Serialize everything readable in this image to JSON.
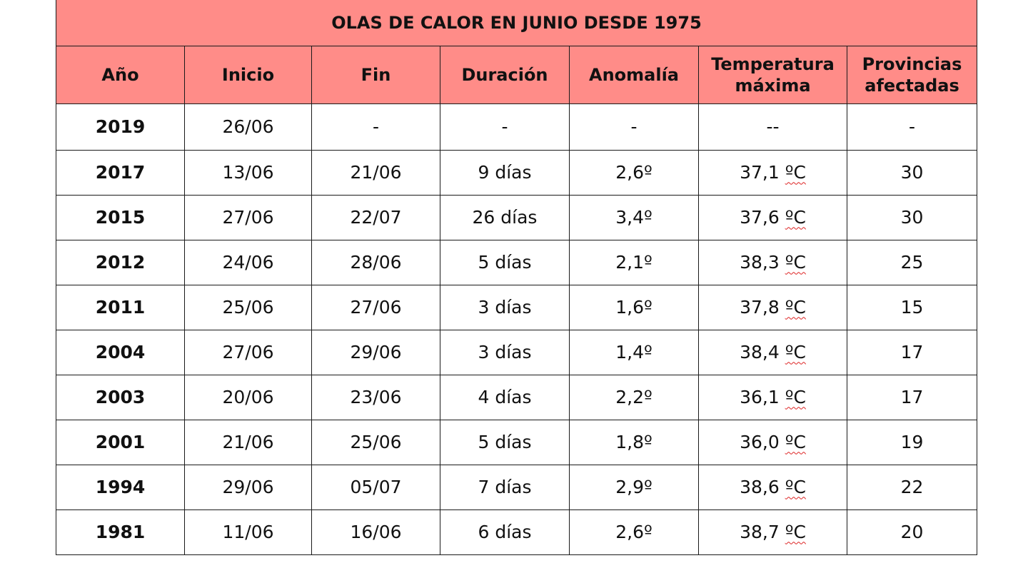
{
  "table": {
    "title": "OLAS DE CALOR EN JUNIO DESDE 1975",
    "headers": {
      "year": "Año",
      "start": "Inicio",
      "end": "Fin",
      "duration": "Duración",
      "anomaly": "Anomalía",
      "max_temp_line1": "Temperatura",
      "max_temp_line2": "máxima",
      "provinces_line1": "Provincias",
      "provinces_line2": "afectadas"
    },
    "rows": [
      {
        "year": "2019",
        "start": "26/06",
        "end": "-",
        "duration": "-",
        "anomaly": "-",
        "temp": "--",
        "temp_unit": "",
        "provinces": "-"
      },
      {
        "year": "2017",
        "start": "13/06",
        "end": "21/06",
        "duration": "9 días",
        "anomaly": "2,6º",
        "temp": "37,1 ",
        "temp_unit": "ºC",
        "provinces": "30"
      },
      {
        "year": "2015",
        "start": "27/06",
        "end": "22/07",
        "duration": "26 días",
        "anomaly": "3,4º",
        "temp": "37,6 ",
        "temp_unit": "ºC",
        "provinces": "30"
      },
      {
        "year": "2012",
        "start": "24/06",
        "end": "28/06",
        "duration": "5 días",
        "anomaly": "2,1º",
        "temp": "38,3 ",
        "temp_unit": "ºC",
        "provinces": "25"
      },
      {
        "year": "2011",
        "start": "25/06",
        "end": "27/06",
        "duration": "3 días",
        "anomaly": "1,6º",
        "temp": "37,8 ",
        "temp_unit": "ºC",
        "provinces": "15"
      },
      {
        "year": "2004",
        "start": "27/06",
        "end": "29/06",
        "duration": "3 días",
        "anomaly": "1,4º",
        "temp": "38,4 ",
        "temp_unit": "ºC",
        "provinces": "17"
      },
      {
        "year": "2003",
        "start": "20/06",
        "end": "23/06",
        "duration": "4 días",
        "anomaly": "2,2º",
        "temp": "36,1 ",
        "temp_unit": "ºC",
        "provinces": "17"
      },
      {
        "year": "2001",
        "start": "21/06",
        "end": "25/06",
        "duration": "5 días",
        "anomaly": "1,8º",
        "temp": "36,0 ",
        "temp_unit": "ºC",
        "provinces": "19"
      },
      {
        "year": "1994",
        "start": "29/06",
        "end": "05/07",
        "duration": "7 días",
        "anomaly": "2,9º",
        "temp": "38,6 ",
        "temp_unit": "ºC",
        "provinces": "22"
      },
      {
        "year": "1981",
        "start": "11/06",
        "end": "16/06",
        "duration": "6 días",
        "anomaly": "2,6º",
        "temp": "38,7 ",
        "temp_unit": "ºC",
        "provinces": "20"
      }
    ]
  },
  "colors": {
    "header_bg": "#ff8c88",
    "border": "#1a1a1a"
  }
}
